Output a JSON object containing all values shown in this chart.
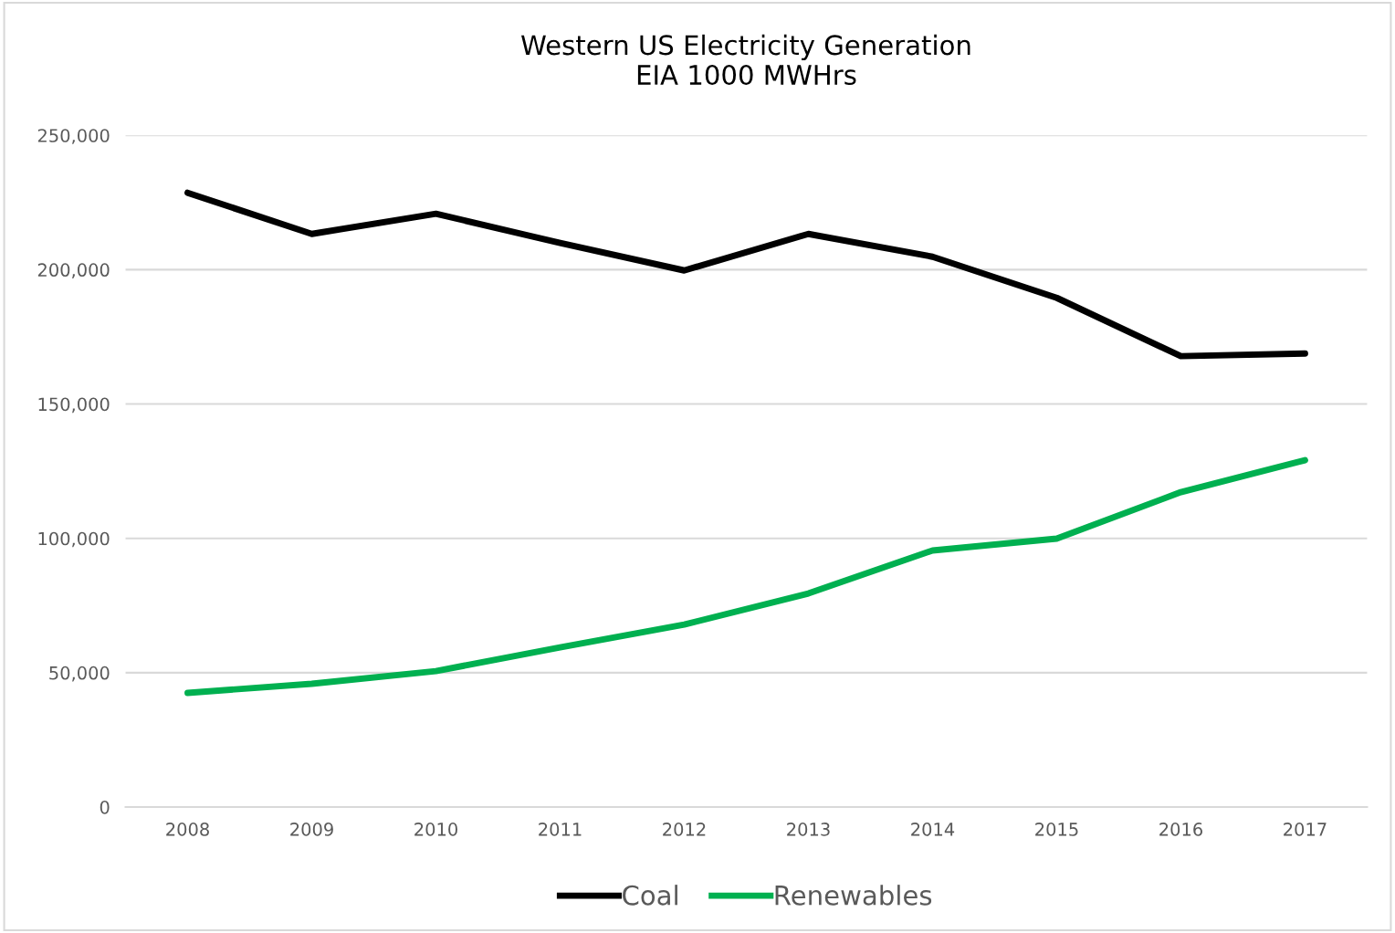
{
  "chart_data": {
    "type": "line",
    "title": "Western US Electricity Generation\nEIA 1000 MWHrs",
    "categories": [
      "2008",
      "2009",
      "2010",
      "2011",
      "2012",
      "2013",
      "2014",
      "2015",
      "2016",
      "2017"
    ],
    "series": [
      {
        "name": "Coal",
        "color": "#000000",
        "values": [
          228600,
          213300,
          220800,
          209900,
          199700,
          213300,
          204800,
          189500,
          167800,
          168800
        ]
      },
      {
        "name": "Renewables",
        "color": "#00b050",
        "values": [
          42500,
          45900,
          50600,
          59400,
          67900,
          79500,
          95500,
          99900,
          117200,
          129100
        ]
      }
    ],
    "ylim": [
      0,
      250000
    ],
    "yticks": [
      {
        "value": 0,
        "label": "0"
      },
      {
        "value": 50000,
        "label": "50,000"
      },
      {
        "value": 100000,
        "label": "100,000"
      },
      {
        "value": 150000,
        "label": "150,000"
      },
      {
        "value": 200000,
        "label": "200,000"
      },
      {
        "value": 250000,
        "label": "250,000"
      }
    ],
    "grid": "y",
    "legend": "bottom",
    "marker": "none",
    "line_style": "solid"
  }
}
